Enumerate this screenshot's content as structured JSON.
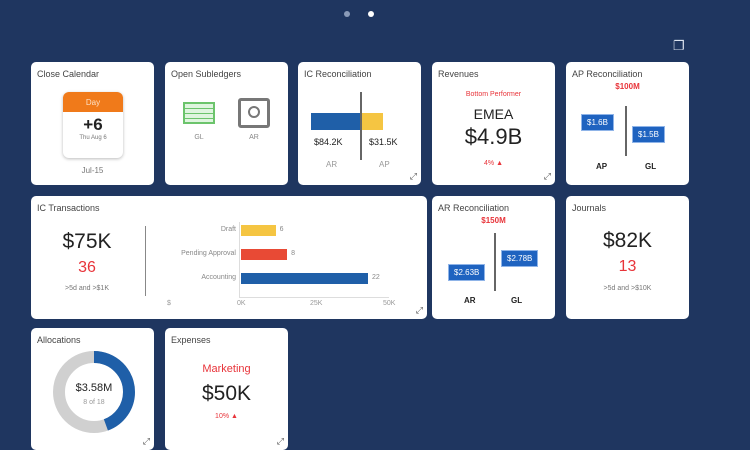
{
  "pager": {
    "pages": 2,
    "active": 2
  },
  "colors": {
    "background": "#1f3660",
    "blue": "#1f5fa8",
    "yellow": "#f5c542",
    "red": "#e84a35",
    "orange": "#f07a1a"
  },
  "close_calendar": {
    "title": "Close Calendar",
    "day_label": "Day",
    "value": "+6",
    "date": "Thu Aug 6",
    "footer": "Jul-15"
  },
  "open_subledgers": {
    "title": "Open Subledgers",
    "items": [
      {
        "label": "GL",
        "icon": "ledger-icon"
      },
      {
        "label": "AR",
        "icon": "safe-icon"
      }
    ]
  },
  "ic_reconciliation": {
    "title": "IC Reconciliation",
    "left_value": "$84.2K",
    "right_value": "$31.5K",
    "left_label": "AR",
    "right_label": "AP"
  },
  "revenues": {
    "title": "Revenues",
    "subtitle": "Bottom Performer",
    "region": "EMEA",
    "value": "$4.9B",
    "change": "4%"
  },
  "ap_reconciliation": {
    "title": "AP Reconciliation",
    "difference": "$100M",
    "left_value": "$1.6B",
    "right_value": "$1.5B",
    "left_label": "AP",
    "right_label": "GL"
  },
  "ic_transactions": {
    "title": "IC Transactions",
    "value": "$75K",
    "count": "36",
    "criteria": ">5d and >$1K",
    "currency_label": "$"
  },
  "chart_data": {
    "type": "bar",
    "orientation": "horizontal",
    "categories": [
      "Draft",
      "Pending Approval",
      "Accounting"
    ],
    "values": [
      6,
      8,
      22
    ],
    "colors": [
      "#f5c542",
      "#e84a35",
      "#1f5fa8"
    ],
    "x_ticks": [
      "0K",
      "25K",
      "50K"
    ],
    "grid": false
  },
  "ar_reconciliation": {
    "title": "AR Reconciliation",
    "difference": "$150M",
    "left_value": "$2.63B",
    "right_value": "$2.78B",
    "left_label": "AR",
    "right_label": "GL"
  },
  "journals": {
    "title": "Journals",
    "value": "$82K",
    "count": "13",
    "criteria": ">5d and >$10K"
  },
  "allocations": {
    "title": "Allocations",
    "value": "$3.58M",
    "progress": "8 of 18",
    "fraction": 0.444
  },
  "expenses": {
    "title": "Expenses",
    "subtitle": "Marketing",
    "value": "$50K",
    "change": "10%"
  }
}
